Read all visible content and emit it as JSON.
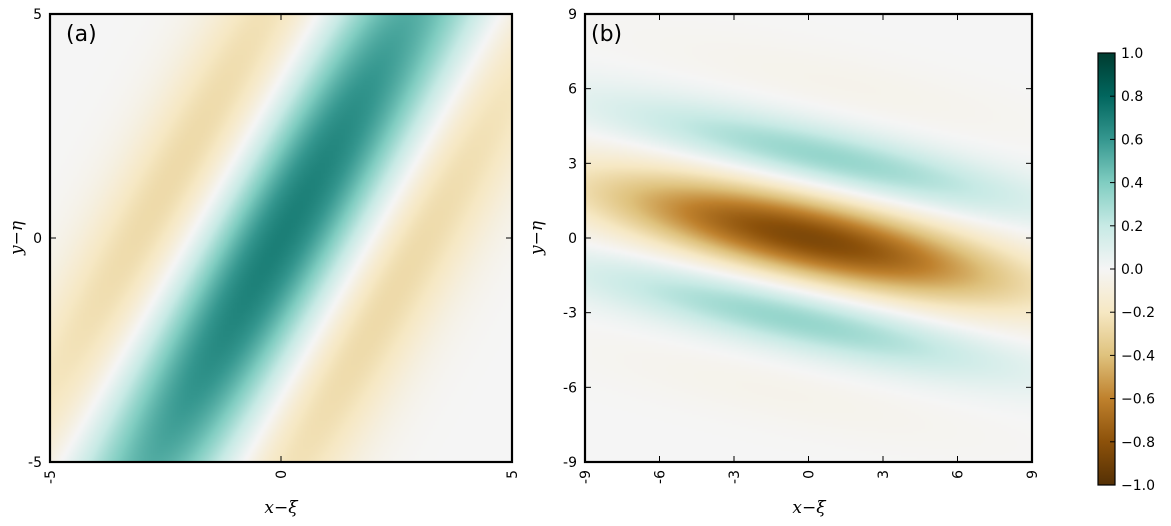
{
  "chart_data": [
    {
      "type": "heatmap",
      "panel_label": "(a)",
      "xlabel": "x−ξ",
      "ylabel": "y−η",
      "xlim": [
        -5,
        5
      ],
      "ylim": [
        -5,
        5
      ],
      "x_ticks": [
        -5,
        0,
        5
      ],
      "x_tick_labels": [
        "-5",
        "0",
        "5"
      ],
      "y_ticks": [
        -5,
        0,
        5
      ],
      "y_tick_labels": [
        "-5",
        "0",
        "5"
      ],
      "field": {
        "description_of_pattern": "tilted wave packet: positive ridge along y=1.8x, negative side lobes",
        "ridge_slope_dy_dx": 1.8,
        "peak_value": 0.7,
        "side_lobe_value": -0.3
      }
    },
    {
      "type": "heatmap",
      "panel_label": "(b)",
      "xlabel": "x−ξ",
      "ylabel": "y−η",
      "xlim": [
        -9,
        9
      ],
      "ylim": [
        -9,
        9
      ],
      "x_ticks": [
        -9,
        -6,
        -3,
        0,
        3,
        6,
        9
      ],
      "x_tick_labels": [
        "-9",
        "-6",
        "-3",
        "0",
        "3",
        "6",
        "9"
      ],
      "y_ticks": [
        -9,
        -6,
        -3,
        0,
        3,
        6,
        9
      ],
      "y_tick_labels": [
        "-9",
        "-6",
        "-3",
        "0",
        "3",
        "6",
        "9"
      ],
      "field": {
        "ridge_slope_dy_dx": -0.22,
        "center_value": -0.85,
        "side_band_value": 0.35,
        "side_band_offset": 3.3
      }
    }
  ],
  "colorbar": {
    "range": [
      -1.0,
      1.0
    ],
    "ticks": [
      1.0,
      0.8,
      0.6,
      0.4,
      0.2,
      0.0,
      -0.2,
      -0.4,
      -0.6,
      -0.8,
      -1.0
    ],
    "tick_labels": [
      "1.0",
      "0.8",
      "0.6",
      "0.4",
      "0.2",
      "0.0",
      "−0.2",
      "−0.4",
      "−0.6",
      "−0.8",
      "−1.0"
    ],
    "colormap": "BrBG",
    "colors": [
      "#543005",
      "#8c510a",
      "#bf812d",
      "#dfc27d",
      "#f6e8c3",
      "#f5f5f5",
      "#c7eae5",
      "#80cdc1",
      "#35978f",
      "#01665e",
      "#003c30"
    ]
  }
}
